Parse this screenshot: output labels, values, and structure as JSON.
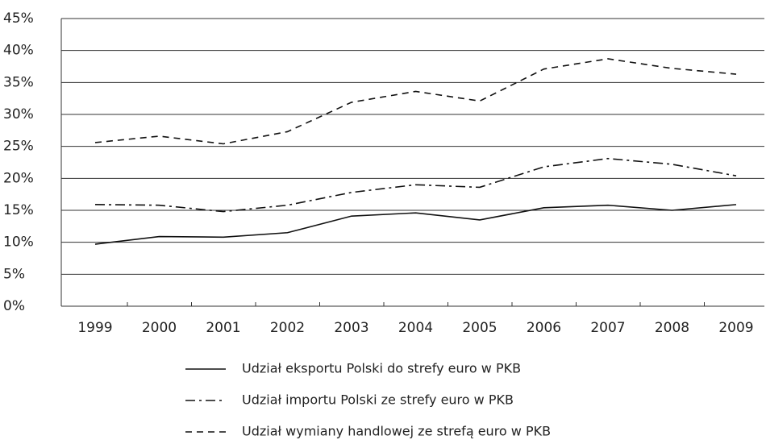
{
  "chart_data": {
    "type": "line",
    "categories": [
      "1999",
      "2000",
      "2001",
      "2002",
      "2003",
      "2004",
      "2005",
      "2006",
      "2007",
      "2008",
      "2009"
    ],
    "series": [
      {
        "name": "Udział eksportu Polski do strefy euro w PKB",
        "color": "#111111",
        "dash": "solid",
        "values": [
          9.7,
          10.9,
          10.8,
          11.5,
          14.1,
          14.6,
          13.5,
          15.4,
          15.8,
          15.0,
          15.9
        ]
      },
      {
        "name": "Udział importu Polski ze strefy euro w PKB",
        "color": "#111111",
        "dash": "dashdot",
        "values": [
          15.9,
          15.8,
          14.8,
          15.8,
          17.8,
          19.0,
          18.6,
          21.8,
          23.1,
          22.2,
          20.4
        ]
      },
      {
        "name": "Udział wymiany handlowej ze strefą euro w PKB",
        "color": "#111111",
        "dash": "dashed",
        "values": [
          25.6,
          26.6,
          25.4,
          27.3,
          31.9,
          33.6,
          32.1,
          37.1,
          38.7,
          37.2,
          36.3
        ]
      }
    ],
    "ylim": [
      0,
      45
    ],
    "yticks": [
      {
        "value": 0,
        "label": "0%"
      },
      {
        "value": 5,
        "label": "5%"
      },
      {
        "value": 10,
        "label": "10%"
      },
      {
        "value": 15,
        "label": "15%"
      },
      {
        "value": 20,
        "label": "20%"
      },
      {
        "value": 25,
        "label": "25%"
      },
      {
        "value": 30,
        "label": "30%"
      },
      {
        "value": 35,
        "label": "35%"
      },
      {
        "value": 40,
        "label": "40%"
      },
      {
        "value": 45,
        "label": "45%"
      }
    ],
    "grid": true
  }
}
